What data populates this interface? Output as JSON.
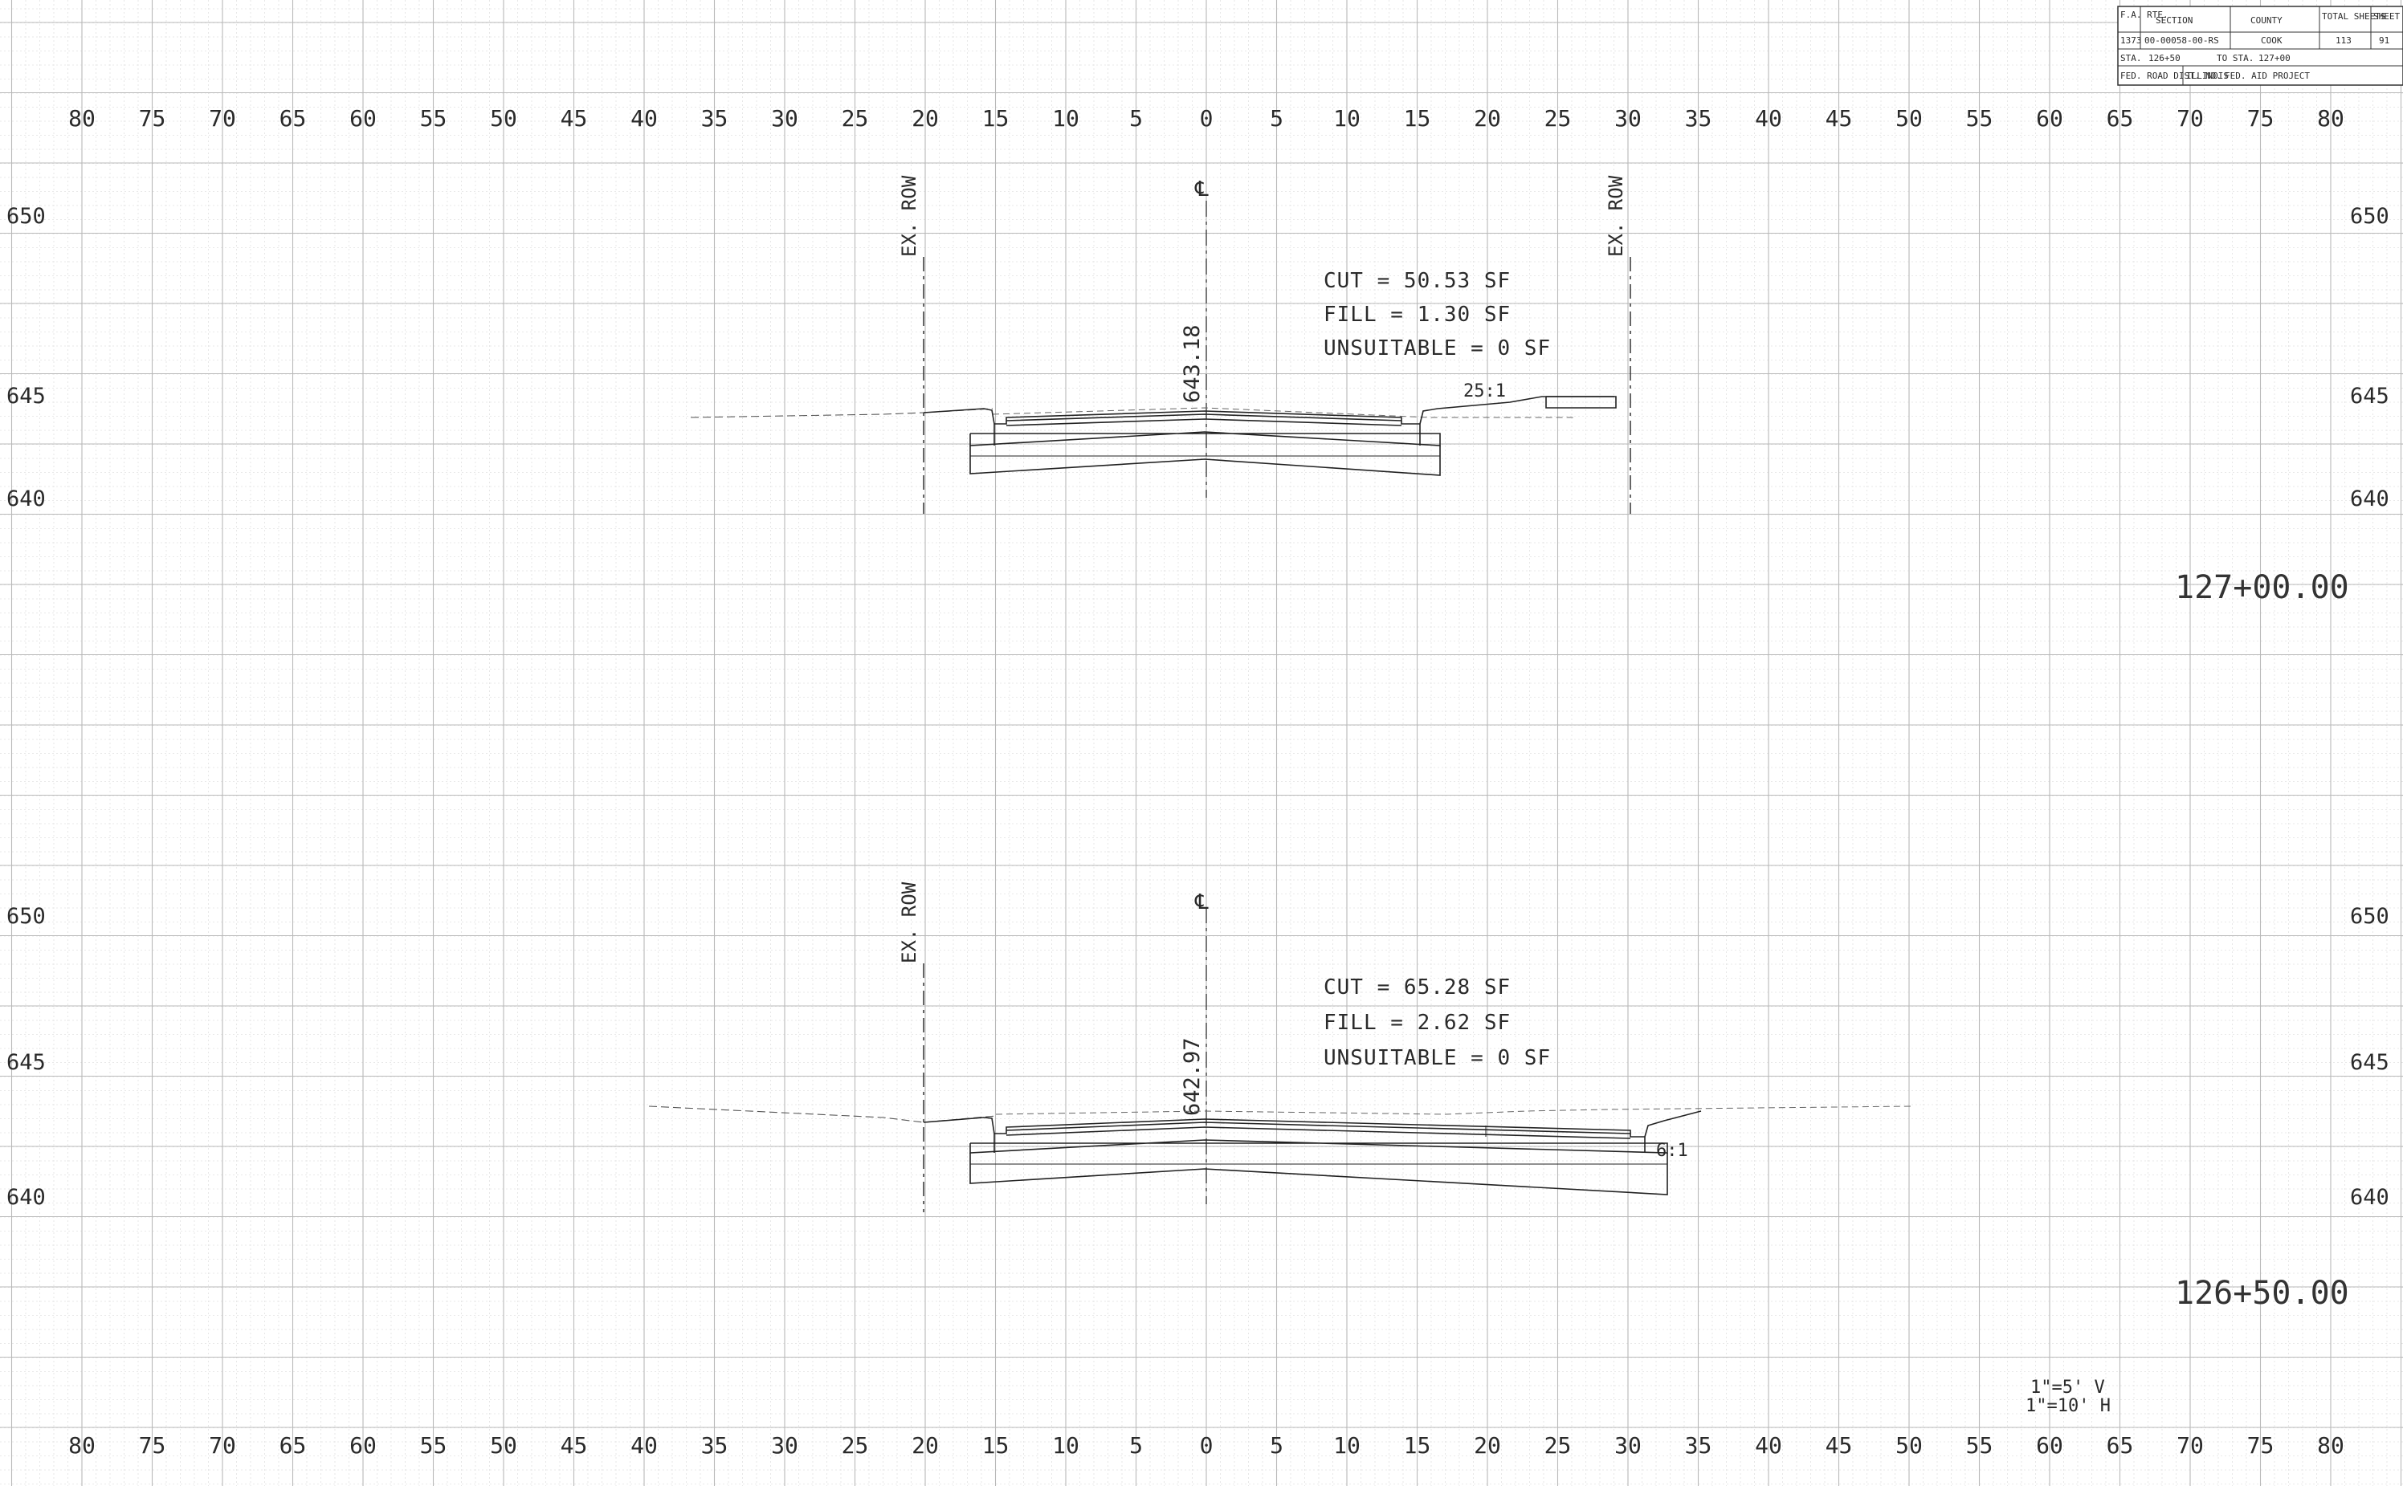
{
  "horizontal_axis_labels": [
    "80",
    "75",
    "70",
    "65",
    "60",
    "55",
    "50",
    "45",
    "40",
    "35",
    "30",
    "25",
    "20",
    "15",
    "10",
    "5",
    "0",
    "5",
    "10",
    "15",
    "20",
    "25",
    "30",
    "35",
    "40",
    "45",
    "50",
    "55",
    "60",
    "65",
    "70",
    "75",
    "80"
  ],
  "title_block": {
    "row1": {
      "fa_rte_label": "F.A. RTE.",
      "section_label": "SECTION",
      "county_label": "COUNTY",
      "total_sheets_label": "TOTAL SHEETS",
      "sheet_no_label": "SHEET NO."
    },
    "row2": {
      "fa_rte": "1373",
      "section": "00-00058-00-RS",
      "county": "COOK",
      "total_sheets": "113",
      "sheet_no": "91"
    },
    "row3": {
      "sta_label": "STA.",
      "sta_from": "126+50",
      "to_label": "TO STA.",
      "sta_to": "127+00"
    },
    "row4": {
      "fed_road_dist": "FED. ROAD DIST. NO.",
      "state": "ILLINOIS",
      "project": "FED. AID PROJECT"
    }
  },
  "sections": [
    {
      "station": "127+00.00",
      "elevation_labels": [
        "650",
        "645",
        "640"
      ],
      "row_label_left": "EX. ROW",
      "row_label_right": "EX. ROW",
      "centerline_symbol": "℄",
      "centerline_elevation": "643.18",
      "cut": "CUT = 50.53 SF",
      "fill": "FILL = 1.30 SF",
      "unsuitable": "UNSUITABLE = 0 SF",
      "slope": "25:1"
    },
    {
      "station": "126+50.00",
      "elevation_labels": [
        "650",
        "645",
        "640"
      ],
      "row_label_left": "EX. ROW",
      "centerline_symbol": "℄",
      "centerline_elevation": "642.97",
      "cut": "CUT = 65.28 SF",
      "fill": "FILL = 2.62 SF",
      "unsuitable": "UNSUITABLE = 0 SF",
      "slope": "6:1"
    }
  ],
  "scale": {
    "vertical": "1\"=5' V",
    "horizontal": "1\"=10' H"
  }
}
